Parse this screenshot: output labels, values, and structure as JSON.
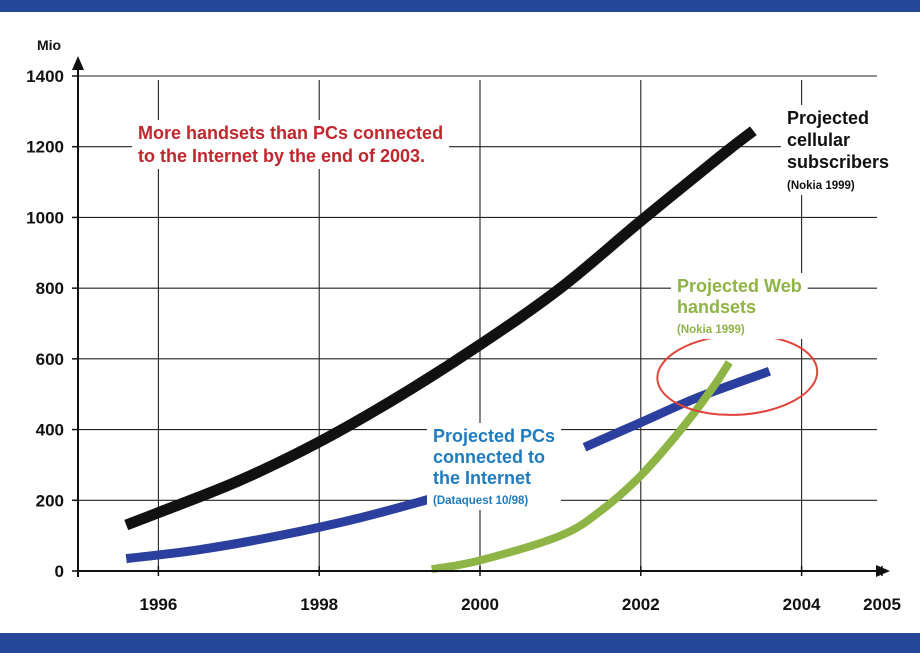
{
  "chart_data": {
    "type": "line",
    "title": "",
    "xlabel": "",
    "ylabel": "Mio",
    "xlim": [
      1995,
      2005
    ],
    "ylim": [
      0,
      1400
    ],
    "x_ticks": [
      "1996",
      "1998",
      "2000",
      "2002",
      "2004",
      "2005"
    ],
    "y_ticks": [
      "0",
      "200",
      "400",
      "600",
      "800",
      "1000",
      "1200",
      "1400"
    ],
    "grid": true,
    "series": [
      {
        "name": "Projected cellular subscribers",
        "source": "(Nokia 1999)",
        "color": "#111111",
        "x": [
          1995.6,
          1996.0,
          1997.0,
          1998.0,
          1999.0,
          2000.0,
          2001.0,
          2002.0,
          2003.0,
          2003.4
        ],
        "y": [
          130,
          165,
          255,
          365,
          495,
          640,
          800,
          990,
          1175,
          1245
        ]
      },
      {
        "name": "Projected PCs connected to the Internet",
        "source": "(Dataquest 10/98)",
        "color": "#2b3f9f",
        "x": [
          1995.6,
          1996.5,
          1997.5,
          1998.5,
          1999.4,
          2001.3,
          2002.0,
          2002.7,
          2003.6
        ],
        "y": [
          35,
          60,
          100,
          150,
          205,
          350,
          420,
          490,
          565
        ]
      },
      {
        "name": "Projected Web handsets",
        "source": "(Nokia 1999)",
        "color": "#8db444",
        "x": [
          1999.4,
          2000.0,
          2001.0,
          2001.5,
          2002.0,
          2002.5,
          2002.9,
          2003.1
        ],
        "y": [
          5,
          30,
          100,
          170,
          270,
          400,
          520,
          590
        ]
      }
    ],
    "annotations": [
      {
        "text": [
          "More handsets than PCs connected",
          "to the Internet by the end of 2003."
        ],
        "color": "#c0272d"
      }
    ],
    "highlight": {
      "shape": "ellipse",
      "center_x": 2003.2,
      "center_y": 555,
      "color": "#e0443a"
    }
  }
}
